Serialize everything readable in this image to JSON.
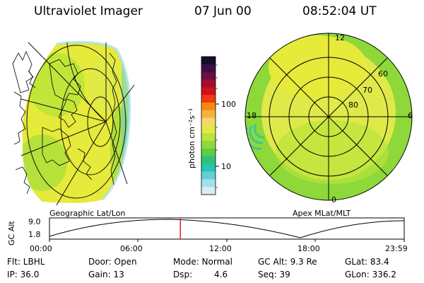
{
  "header": {
    "instrument": "Ultraviolet Imager",
    "date": "07 Jun 00",
    "time": "08:52:04 UT"
  },
  "left_panel": {
    "caption": "Geographic Lat/Lon"
  },
  "right_panel": {
    "caption": "Apex MLat/MLT",
    "mlt_labels": [
      "12",
      "18",
      "6",
      "0"
    ],
    "lat_labels": [
      "60",
      "70",
      "80"
    ]
  },
  "colorbar": {
    "unit_label": "photon cm⁻²s⁻¹",
    "ticks": [
      "100",
      "10"
    ],
    "colors": [
      "#1a0a2e",
      "#3b0f49",
      "#6b0f3f",
      "#a10f2c",
      "#d0101a",
      "#ee3a10",
      "#f68a10",
      "#f5b23a",
      "#f5d86a",
      "#dfe94a",
      "#b8e43a",
      "#8ed83a",
      "#5ccc48",
      "#30c07a",
      "#28c4b0",
      "#60d0d8",
      "#a6dfe8",
      "#d6eef2"
    ],
    "color_of_high_end": "#1a0a2e",
    "color_of_low_end": "#d6eef2"
  },
  "timeline": {
    "y_axis_label": "GC Alt",
    "y_max_label": "9.0",
    "y_min_label": "1.8",
    "x_ticks": [
      "00:00",
      "06:00",
      "12:00",
      "18:00",
      "23:59"
    ],
    "marker_color": "#e02020",
    "marker_time_fraction": 0.369
  },
  "status": {
    "filter": "Flt: LBHL",
    "ip": "IP: 36.0",
    "door": "Door: Open",
    "gain": "Gain: 13",
    "mode": "Mode: Normal",
    "dsp_label": "Dsp:",
    "dsp_value": "4.6",
    "gc_alt": "GC Alt: 9.3 Re",
    "seq": "Seq: 39",
    "glat": "GLat: 83.4",
    "glon": "GLon: 336.2"
  },
  "colors": {
    "aurora_yellow": "#e6ea3a",
    "aurora_green": "#8ed83a",
    "aurora_cyan": "#28c4b0"
  }
}
